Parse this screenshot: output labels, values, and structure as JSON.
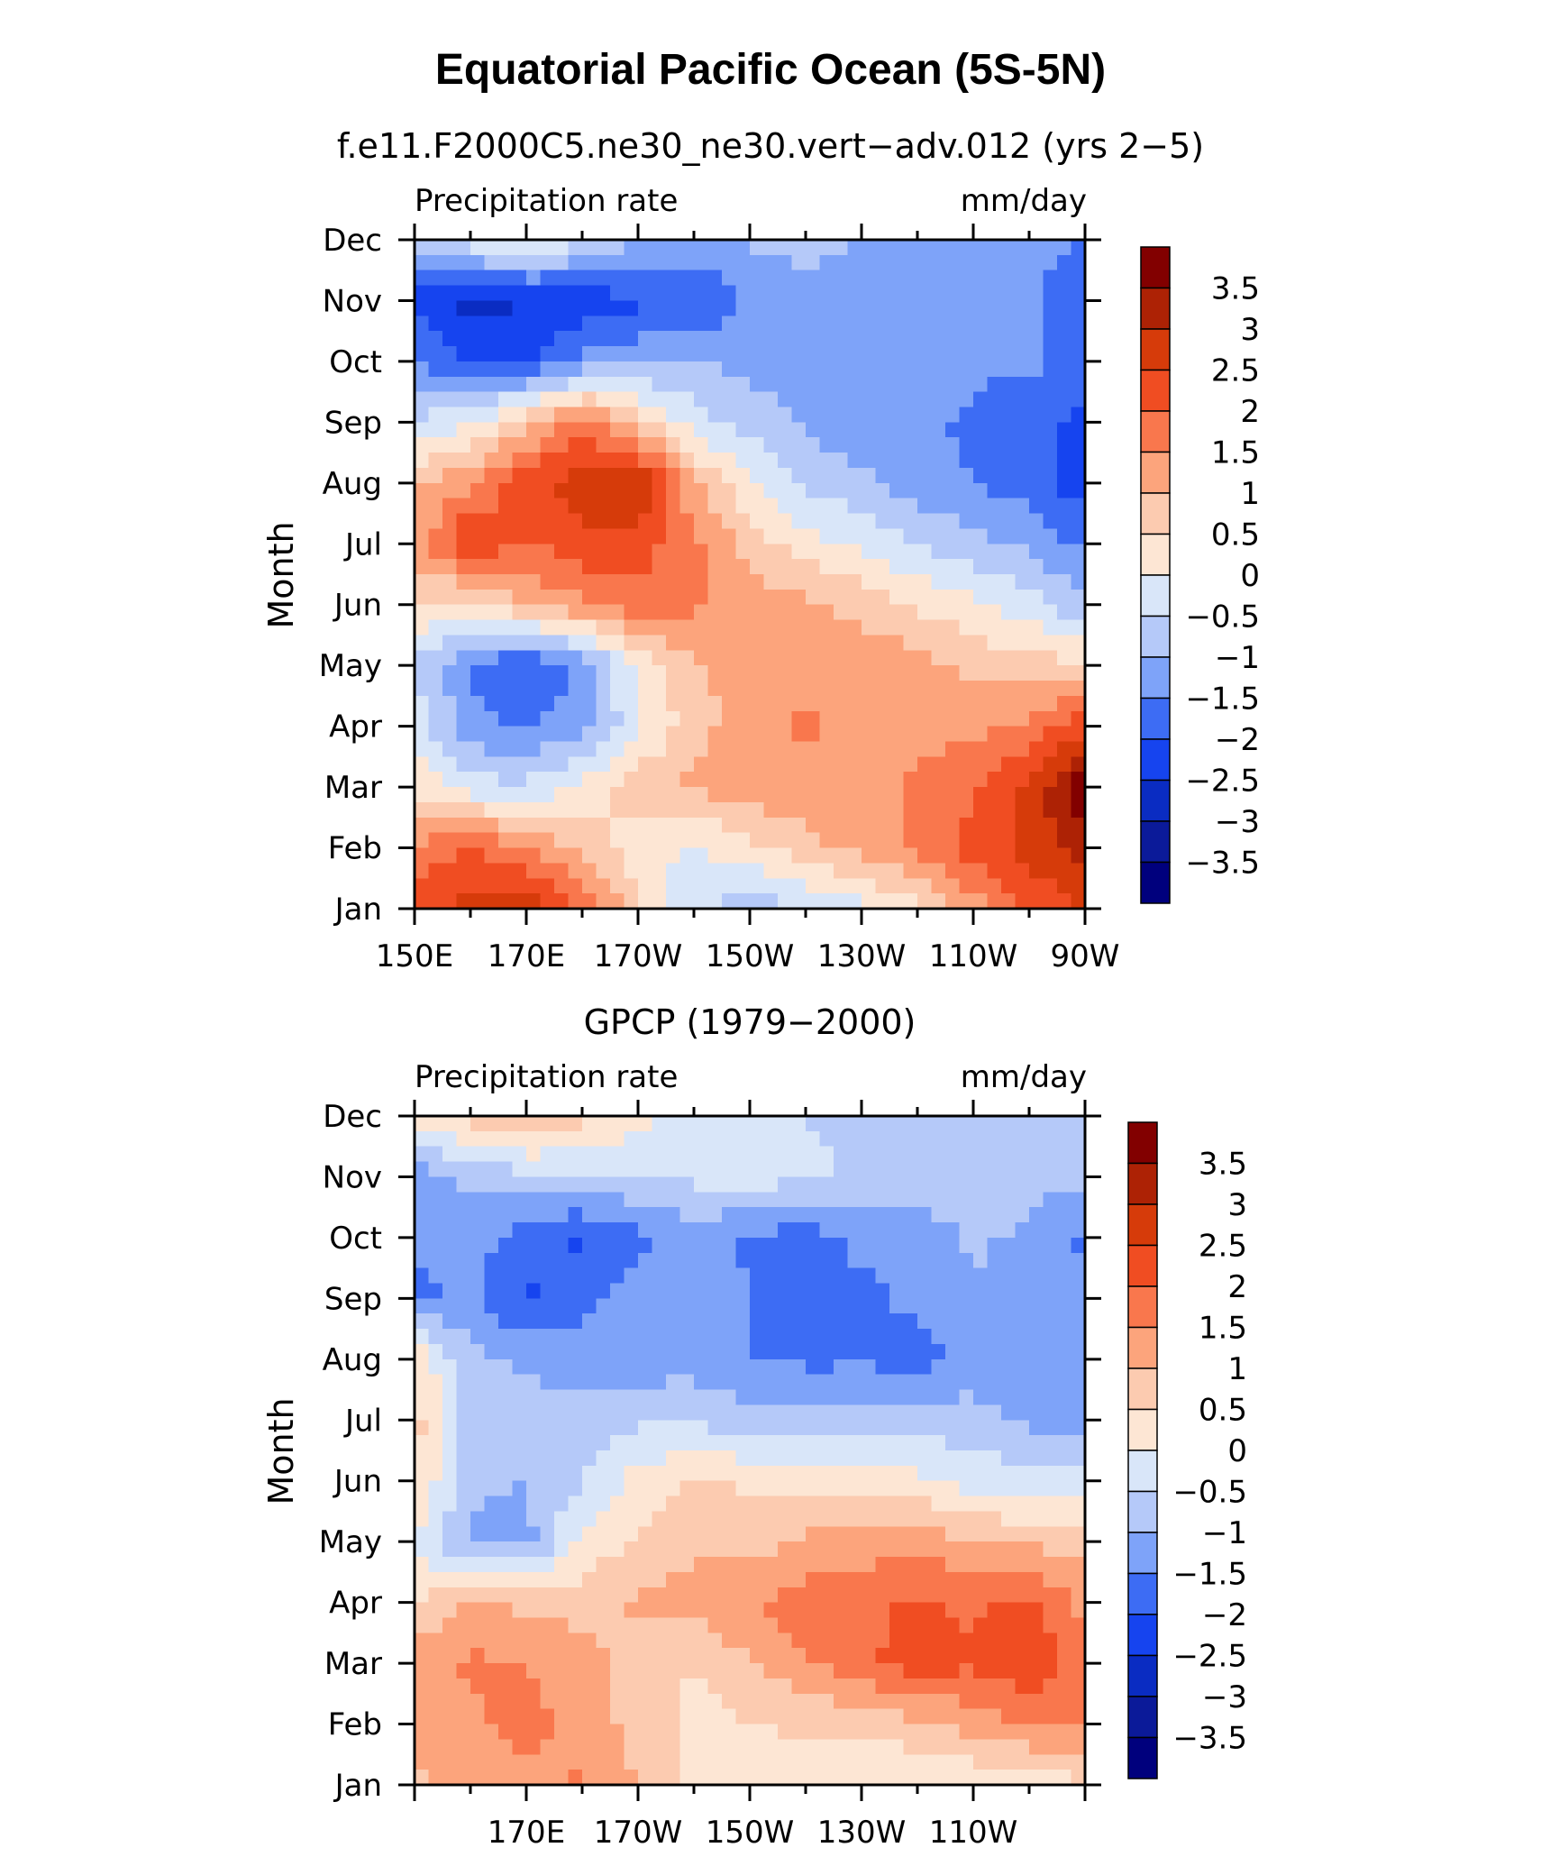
{
  "title": "Equatorial Pacific Ocean (5S-5N)",
  "chart_data": [
    {
      "type": "heatmap",
      "subtitle": "f.e11.F2000C5.ne30_ne30.vert−adv.012 (yrs 2−5)",
      "left_label": "Precipitation rate",
      "right_label": "mm/day",
      "ylabel": "Month",
      "y_tick_labels": [
        "Jan",
        "Feb",
        "Mar",
        "Apr",
        "May",
        "Jun",
        "Jul",
        "Aug",
        "Sep",
        "Oct",
        "Nov",
        "Dec"
      ],
      "x_range": [
        150,
        270
      ],
      "x_tick_labels": [
        "150E",
        "170E",
        "170W",
        "150W",
        "130W",
        "110W",
        "90W"
      ],
      "x_tick_values": [
        150,
        170,
        190,
        210,
        230,
        250,
        270
      ],
      "x_lon": [
        150,
        160,
        170,
        180,
        190,
        200,
        210,
        220,
        230,
        240,
        250,
        260,
        270
      ],
      "values": [
        [
          2.2,
          2.8,
          3.0,
          2.0,
          0.6,
          -0.4,
          -0.8,
          -0.5,
          -0.2,
          0.4,
          1.3,
          2.0,
          2.6
        ],
        [
          1.6,
          2.0,
          1.5,
          0.9,
          0.2,
          -0.1,
          0.4,
          0.8,
          1.2,
          1.6,
          2.2,
          2.7,
          3.3
        ],
        [
          0.4,
          -0.3,
          -0.4,
          0.1,
          0.8,
          1.1,
          1.3,
          1.4,
          1.3,
          1.6,
          1.9,
          2.6,
          3.9
        ],
        [
          -0.2,
          -1.3,
          -1.6,
          -1.2,
          -0.1,
          0.8,
          1.3,
          1.6,
          1.2,
          1.3,
          1.4,
          1.6,
          2.4
        ],
        [
          -0.5,
          -1.6,
          -2.1,
          -1.4,
          0.1,
          0.9,
          1.2,
          1.3,
          1.4,
          1.2,
          0.9,
          0.7,
          0.6
        ],
        [
          0.4,
          0.3,
          1.1,
          1.4,
          1.9,
          1.6,
          1.3,
          1.1,
          0.8,
          0.4,
          0.1,
          -0.3,
          -0.9
        ],
        [
          1.2,
          2.6,
          1.9,
          2.4,
          2.2,
          1.6,
          0.8,
          0.2,
          -0.1,
          -0.5,
          -0.8,
          -1.1,
          -1.6
        ],
        [
          0.9,
          1.4,
          2.4,
          2.8,
          3.1,
          1.1,
          0.1,
          -0.6,
          -0.9,
          -1.3,
          -1.5,
          -1.8,
          -2.3
        ],
        [
          -0.4,
          -0.1,
          0.8,
          1.8,
          0.6,
          -0.3,
          -0.7,
          -1.1,
          -1.3,
          -1.4,
          -1.6,
          -1.9,
          -2.1
        ],
        [
          -1.6,
          -2.0,
          -2.1,
          -1.4,
          -1.1,
          -1.0,
          -1.2,
          -1.2,
          -1.1,
          -1.2,
          -1.4,
          -1.4,
          -1.7
        ],
        [
          -2.1,
          -2.7,
          -2.5,
          -2.3,
          -2.1,
          -2.0,
          -1.4,
          -1.2,
          -1.3,
          -1.2,
          -1.5,
          -1.4,
          -2.0
        ],
        [
          -0.9,
          -0.1,
          0.2,
          -0.4,
          -1.0,
          -1.2,
          -0.9,
          -0.8,
          -1.0,
          -1.0,
          -1.2,
          -1.3,
          -1.5
        ]
      ],
      "colorbar_labels": [
        "3.5",
        "3",
        "2.5",
        "2",
        "1.5",
        "1",
        "0.5",
        "0",
        "−0.5",
        "−1",
        "−1.5",
        "−2",
        "−2.5",
        "−3",
        "−3.5"
      ]
    },
    {
      "type": "heatmap",
      "subtitle": "GPCP (1979−2000)",
      "left_label": "Precipitation rate",
      "right_label": "mm/day",
      "ylabel": "Month",
      "y_tick_labels": [
        "Jan",
        "Feb",
        "Mar",
        "Apr",
        "May",
        "Jun",
        "Jul",
        "Aug",
        "Sep",
        "Oct",
        "Nov",
        "Dec"
      ],
      "x_range": [
        150,
        270
      ],
      "x_tick_labels": [
        "170E",
        "170W",
        "150W",
        "130W",
        "110W"
      ],
      "x_tick_values": [
        170,
        190,
        210,
        230,
        250
      ],
      "x_lon": [
        150,
        160,
        170,
        180,
        190,
        200,
        210,
        220,
        230,
        240,
        250,
        260,
        270
      ],
      "values": [
        [
          0.9,
          1.1,
          1.3,
          1.6,
          1.0,
          0.4,
          0.2,
          0.1,
          0.0,
          -0.1,
          0.1,
          0.2,
          0.4
        ],
        [
          1.1,
          1.4,
          1.7,
          1.3,
          0.8,
          0.3,
          0.5,
          0.6,
          0.7,
          0.9,
          1.2,
          1.5,
          1.6
        ],
        [
          1.3,
          1.6,
          1.5,
          1.2,
          0.8,
          0.5,
          1.0,
          1.4,
          1.9,
          2.2,
          2.1,
          2.4,
          1.8
        ],
        [
          0.4,
          1.1,
          0.9,
          0.8,
          1.1,
          1.2,
          1.4,
          1.8,
          1.9,
          2.1,
          1.9,
          2.1,
          1.3
        ],
        [
          -0.1,
          -1.1,
          -1.2,
          0.1,
          0.6,
          0.9,
          0.8,
          1.1,
          1.2,
          1.3,
          1.0,
          0.9,
          0.8
        ],
        [
          0.6,
          -0.9,
          -1.0,
          -0.5,
          0.2,
          0.6,
          0.4,
          0.3,
          0.2,
          0.1,
          -0.2,
          -0.3,
          -0.4
        ],
        [
          0.7,
          -0.7,
          -0.8,
          -0.7,
          -0.6,
          -0.6,
          -0.8,
          -0.9,
          -0.7,
          -0.7,
          -0.8,
          -1.1,
          -1.3
        ],
        [
          0.5,
          -0.9,
          -1.1,
          -1.3,
          -1.3,
          -1.2,
          -1.5,
          -1.6,
          -1.6,
          -1.7,
          -1.3,
          -1.5,
          -1.4
        ],
        [
          -1.6,
          -1.4,
          -2.1,
          -1.6,
          -1.3,
          -1.2,
          -1.5,
          -1.6,
          -1.6,
          -1.4,
          -1.1,
          -1.3,
          -1.3
        ],
        [
          -1.4,
          -1.3,
          -1.7,
          -2.1,
          -1.6,
          -1.2,
          -1.6,
          -1.7,
          -1.4,
          -1.4,
          -0.9,
          -1.1,
          -1.6
        ],
        [
          -1.3,
          -0.9,
          -0.6,
          -0.6,
          -0.5,
          -0.4,
          -0.3,
          -0.4,
          -0.6,
          -0.5,
          -0.6,
          -0.8,
          -0.9
        ],
        [
          0.2,
          0.7,
          1.1,
          0.6,
          0.2,
          -0.2,
          -0.3,
          -0.5,
          -0.6,
          -0.5,
          -0.7,
          -0.8,
          -0.9
        ]
      ],
      "colorbar_labels": [
        "3.5",
        "3",
        "2.5",
        "2",
        "1.5",
        "1",
        "0.5",
        "0",
        "−0.5",
        "−1",
        "−1.5",
        "−2",
        "−2.5",
        "−3",
        "−3.5"
      ]
    }
  ],
  "colors": {
    "levels": [
      -3.5,
      -3,
      -2.5,
      -2,
      -1.5,
      -1,
      -0.5,
      0,
      0.5,
      1,
      1.5,
      2,
      2.5,
      3,
      3.5
    ],
    "fills": [
      "#00007d",
      "#0b1a99",
      "#0a2cc2",
      "#1644ef",
      "#3d6cf4",
      "#7ea3f9",
      "#b5c9f9",
      "#d9e6f9",
      "#fde6d4",
      "#fccbb0",
      "#fca47c",
      "#f9774d",
      "#f04d22",
      "#d63b0a",
      "#ad2205",
      "#820000"
    ]
  }
}
